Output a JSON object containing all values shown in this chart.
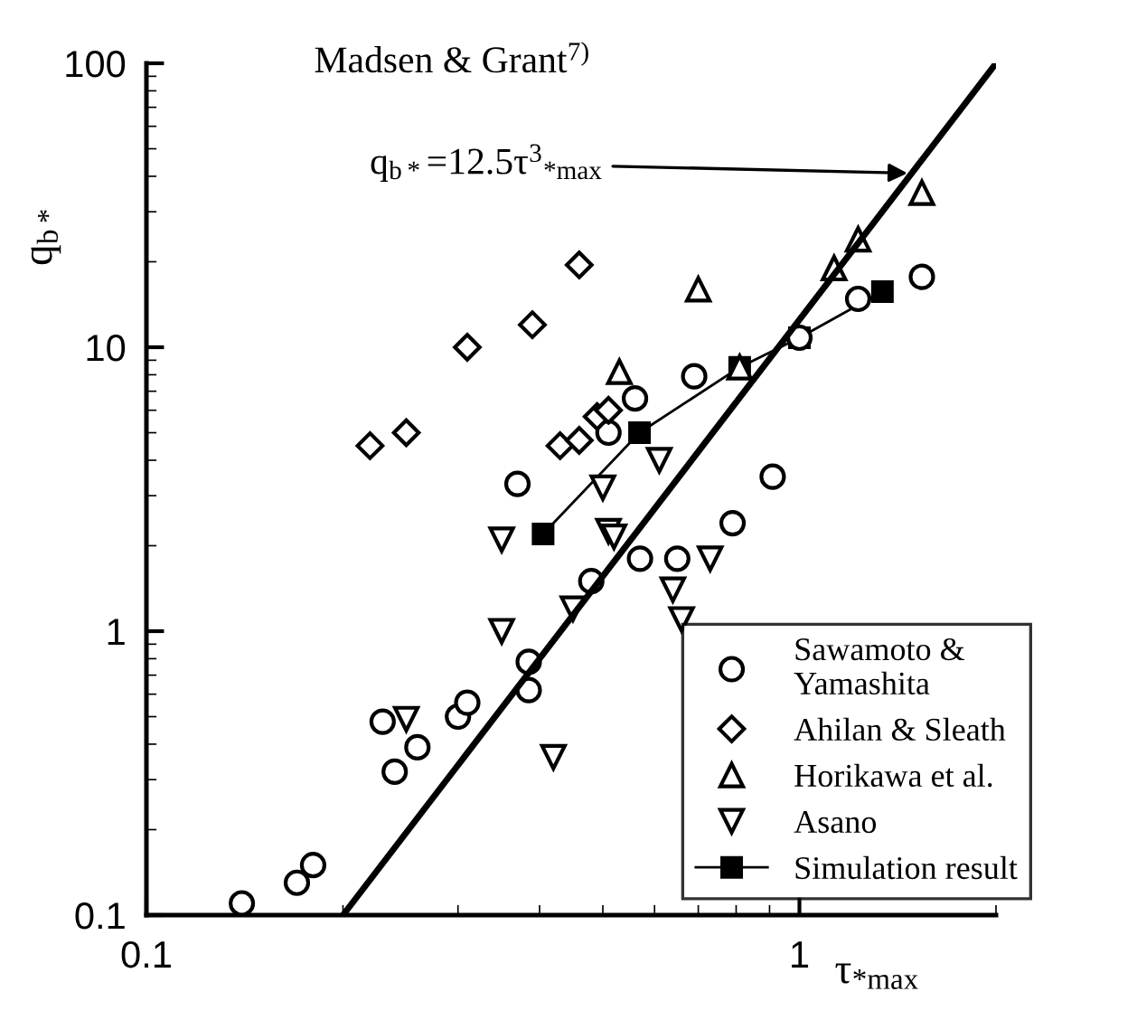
{
  "chart_data": {
    "type": "scatter",
    "log": "xy",
    "xlabel": "τ$_{*max}$",
    "ylabel": "q$_{b*}$",
    "xlim": [
      0.1,
      2
    ],
    "ylim": [
      0.1,
      100
    ],
    "xticks": [
      0.1,
      1
    ],
    "yticks": [
      0.1,
      1,
      10,
      100
    ],
    "grid": false,
    "legend": "bottom right",
    "annotations": [
      "Madsen & Grant$^{7)}$",
      {
        "text": "q$_{b*}$=12.5τ$^{3}$$_{*max}$",
        "x": 1.49,
        "y": 41
      }
    ],
    "series": [
      {
        "type": "line",
        "color": "#000000",
        "marker": "none",
        "line_style": "solid",
        "x": [
          0.2,
          2
        ],
        "values": [
          0.1,
          100
        ]
      },
      {
        "name": "Simulation result",
        "type": "line",
        "color": "#000000",
        "marker": "square",
        "line_style": "solid",
        "x": [
          0.405,
          0.569,
          0.81,
          1.0,
          1.34
        ],
        "values": [
          2.2,
          5.0,
          8.5,
          10.8,
          15.7
        ]
      },
      {
        "name": "Sawamoto &\nYamashita",
        "color": "#000000",
        "marker": "circle",
        "x": [
          0.14,
          0.17,
          0.18,
          0.23,
          0.24,
          0.26,
          0.3,
          0.31,
          0.385,
          0.385,
          0.48,
          0.57,
          0.65,
          0.79,
          0.37,
          0.51,
          0.56,
          0.69,
          0.91,
          1.0,
          1.23,
          1.54
        ],
        "values": [
          0.11,
          0.13,
          0.15,
          0.48,
          0.32,
          0.39,
          0.5,
          0.56,
          0.78,
          0.62,
          1.5,
          1.8,
          1.8,
          2.4,
          3.3,
          5.0,
          6.6,
          7.9,
          3.5,
          10.8,
          14.8,
          17.7
        ]
      },
      {
        "name": "Ahilan & Sleath",
        "color": "#000000",
        "marker": "diamond",
        "x": [
          0.22,
          0.25,
          0.31,
          0.39,
          0.46,
          0.43,
          0.46,
          0.49,
          0.51
        ],
        "values": [
          4.5,
          5.0,
          10,
          12,
          19.5,
          4.5,
          4.7,
          5.7,
          6.0
        ]
      },
      {
        "name": "Horikawa et al.",
        "color": "#000000",
        "marker": "triangle",
        "x": [
          0.7,
          0.53,
          0.81,
          1.13,
          1.23,
          1.54
        ],
        "values": [
          16,
          8.2,
          8.5,
          19,
          24,
          35
        ]
      },
      {
        "name": "Asano",
        "color": "#000000",
        "marker": "triangle_down",
        "x": [
          0.61,
          0.5,
          0.35,
          0.51,
          0.52,
          0.73,
          0.64,
          0.66,
          0.45,
          0.35,
          0.25,
          0.42
        ],
        "values": [
          4.0,
          3.2,
          2.1,
          2.25,
          2.15,
          1.8,
          1.4,
          1.1,
          1.2,
          1.0,
          0.49,
          0.36
        ]
      }
    ]
  }
}
